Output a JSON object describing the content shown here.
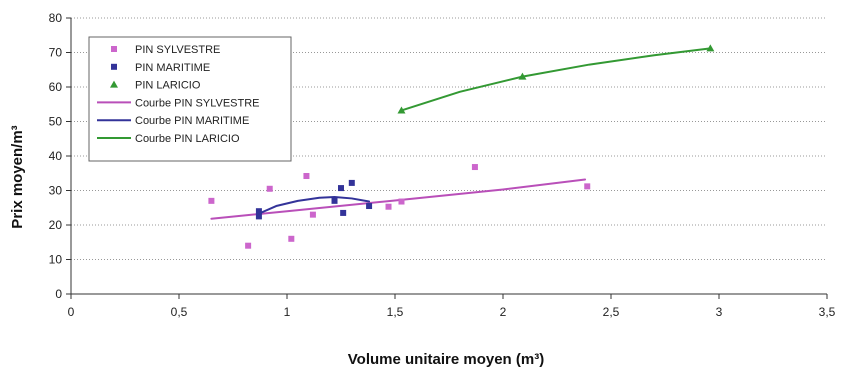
{
  "chart_data": {
    "type": "scatter",
    "xlabel": "Volume unitaire moyen (m³)",
    "ylabel": "Prix moyen/m³",
    "xlim": [
      0,
      3.5
    ],
    "ylim": [
      0,
      80
    ],
    "x_ticks": [
      0,
      0.5,
      1,
      1.5,
      2,
      2.5,
      3,
      3.5
    ],
    "x_tick_labels": [
      "0",
      "0,5",
      "1",
      "1,5",
      "2",
      "2,5",
      "3",
      "3,5"
    ],
    "y_ticks": [
      0,
      10,
      20,
      30,
      40,
      50,
      60,
      70,
      80
    ],
    "y_tick_labels": [
      "0",
      "10",
      "20",
      "30",
      "40",
      "50",
      "60",
      "70",
      "80"
    ],
    "grid": "horizontal dotted",
    "legend_position": "top-left",
    "series": [
      {
        "name": "PIN SYLVESTRE",
        "kind": "points",
        "marker": "square",
        "color": "#cc66cc",
        "points": [
          [
            0.65,
            27
          ],
          [
            0.82,
            14
          ],
          [
            0.92,
            30.5
          ],
          [
            1.02,
            16
          ],
          [
            1.09,
            34.2
          ],
          [
            1.12,
            23
          ],
          [
            1.47,
            25.3
          ],
          [
            1.53,
            26.8
          ],
          [
            1.87,
            36.8
          ],
          [
            2.39,
            31.2
          ]
        ]
      },
      {
        "name": "PIN MARITIME",
        "kind": "points",
        "marker": "square",
        "color": "#333399",
        "points": [
          [
            0.87,
            22.5
          ],
          [
            0.87,
            24
          ],
          [
            1.22,
            27
          ],
          [
            1.25,
            30.7
          ],
          [
            1.26,
            23.5
          ],
          [
            1.3,
            32.2
          ],
          [
            1.38,
            25.5
          ]
        ]
      },
      {
        "name": "PIN LARICIO",
        "kind": "points",
        "marker": "triangle",
        "color": "#339933",
        "points": [
          [
            1.53,
            53.2
          ],
          [
            2.09,
            63
          ],
          [
            2.96,
            71.2
          ]
        ]
      },
      {
        "name": "Courbe PIN SYLVESTRE",
        "kind": "curve",
        "color": "#b94fb9",
        "points": [
          [
            0.65,
            21.8
          ],
          [
            1.0,
            24.0
          ],
          [
            1.5,
            27.1
          ],
          [
            2.0,
            30.3
          ],
          [
            2.38,
            33.2
          ]
        ]
      },
      {
        "name": "Courbe PIN MARITIME",
        "kind": "curve",
        "color": "#333399",
        "points": [
          [
            0.87,
            23.3
          ],
          [
            0.95,
            25.5
          ],
          [
            1.05,
            27.0
          ],
          [
            1.15,
            27.9
          ],
          [
            1.22,
            28.1
          ],
          [
            1.3,
            27.7
          ],
          [
            1.38,
            26.8
          ]
        ]
      },
      {
        "name": "Courbe PIN LARICIO",
        "kind": "curve",
        "color": "#339933",
        "points": [
          [
            1.53,
            53.2
          ],
          [
            1.8,
            58.6
          ],
          [
            2.09,
            63.0
          ],
          [
            2.4,
            66.5
          ],
          [
            2.7,
            69.2
          ],
          [
            2.96,
            71.2
          ]
        ]
      }
    ]
  }
}
